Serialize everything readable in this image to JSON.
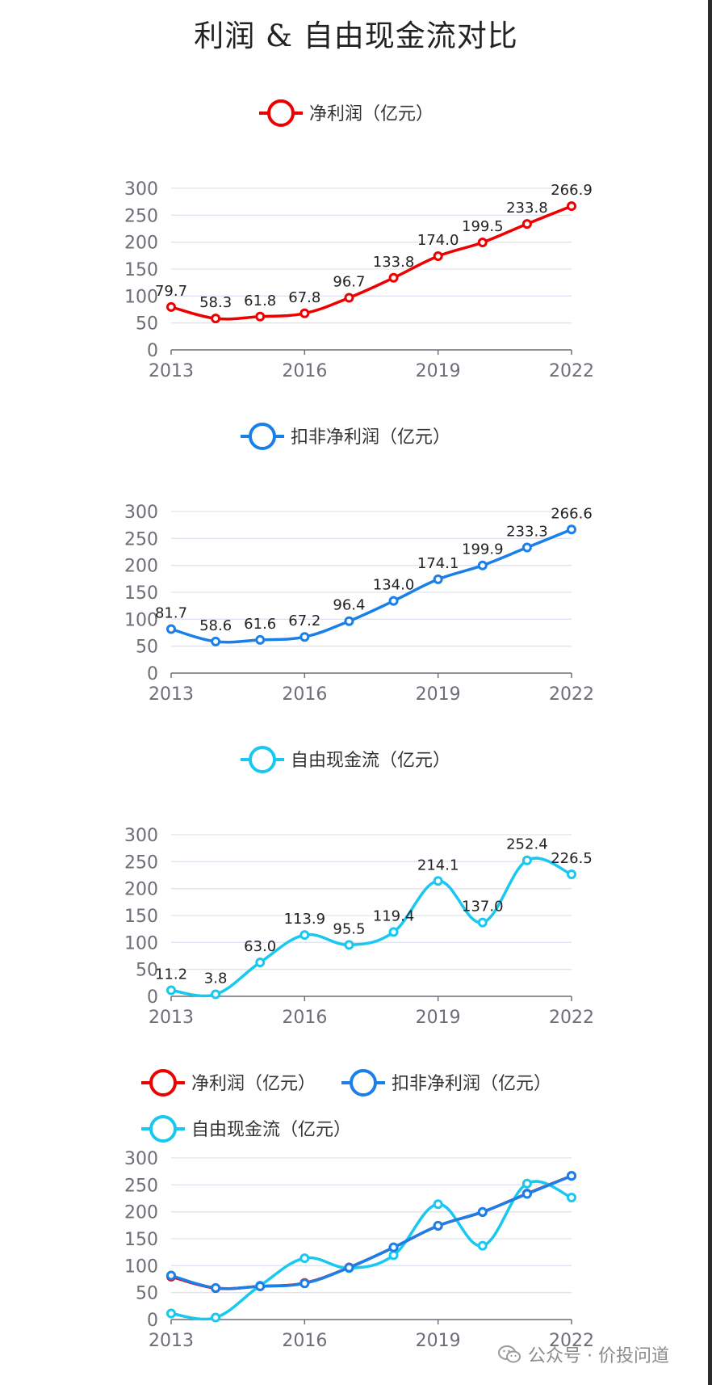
{
  "title": "利润 & 自由现金流对比",
  "watermark": "公众号 · 价投问道",
  "colors": {
    "net_profit": "#ee0000",
    "adj_profit": "#1a7fe8",
    "fcf": "#18c8f0",
    "axis_text": "#6e6e78",
    "grid": "#dfe3ef"
  },
  "chart_data": [
    {
      "type": "line",
      "legend": [
        "净利润（亿元）"
      ],
      "x": [
        "2013",
        "2014",
        "2015",
        "2016",
        "2017",
        "2018",
        "2019",
        "2020",
        "2021",
        "2022"
      ],
      "xticks": [
        "2013",
        "2016",
        "2019",
        "2022"
      ],
      "yticks": [
        0,
        50,
        100,
        150,
        200,
        250,
        300
      ],
      "ylim": [
        0,
        300
      ],
      "series": [
        {
          "name": "净利润（亿元）",
          "color": "#ee0000",
          "labels": true,
          "values": [
            79.7,
            58.3,
            61.8,
            67.8,
            96.7,
            133.8,
            174.0,
            199.5,
            233.8,
            266.9
          ],
          "value_labels": [
            "79.7",
            "58.3",
            "61.8",
            "67.8",
            "96.7",
            "133.8",
            "174.0",
            "199.5",
            "233.8",
            "266.9"
          ]
        }
      ]
    },
    {
      "type": "line",
      "legend": [
        "扣非净利润（亿元）"
      ],
      "x": [
        "2013",
        "2014",
        "2015",
        "2016",
        "2017",
        "2018",
        "2019",
        "2020",
        "2021",
        "2022"
      ],
      "xticks": [
        "2013",
        "2016",
        "2019",
        "2022"
      ],
      "yticks": [
        0,
        50,
        100,
        150,
        200,
        250,
        300
      ],
      "ylim": [
        0,
        300
      ],
      "series": [
        {
          "name": "扣非净利润（亿元）",
          "color": "#1a7fe8",
          "labels": true,
          "values": [
            81.7,
            58.6,
            61.6,
            67.2,
            96.4,
            134.0,
            174.1,
            199.9,
            233.3,
            266.6
          ],
          "value_labels": [
            "81.7",
            "58.6",
            "61.6",
            "67.2",
            "96.4",
            "134.0",
            "174.1",
            "199.9",
            "233.3",
            "266.6"
          ]
        }
      ]
    },
    {
      "type": "line",
      "legend": [
        "自由现金流（亿元）"
      ],
      "x": [
        "2013",
        "2014",
        "2015",
        "2016",
        "2017",
        "2018",
        "2019",
        "2020",
        "2021",
        "2022"
      ],
      "xticks": [
        "2013",
        "2016",
        "2019",
        "2022"
      ],
      "yticks": [
        0,
        50,
        100,
        150,
        200,
        250,
        300
      ],
      "ylim": [
        0,
        300
      ],
      "series": [
        {
          "name": "自由现金流（亿元）",
          "color": "#18c8f0",
          "labels": true,
          "values": [
            11.2,
            3.8,
            63.0,
            113.9,
            95.5,
            119.4,
            214.1,
            137.0,
            252.4,
            226.5
          ],
          "value_labels": [
            "11.2",
            "3.8",
            "63.0",
            "113.9",
            "95.5",
            "119.4",
            "214.1",
            "137.0",
            "252.4",
            "226.5"
          ]
        }
      ]
    },
    {
      "type": "line",
      "legend": [
        "净利润（亿元）",
        "扣非净利润（亿元）",
        "自由现金流（亿元）"
      ],
      "x": [
        "2013",
        "2014",
        "2015",
        "2016",
        "2017",
        "2018",
        "2019",
        "2020",
        "2021",
        "2022"
      ],
      "xticks": [
        "2013",
        "2016",
        "2019",
        "2022"
      ],
      "yticks": [
        0,
        50,
        100,
        150,
        200,
        250,
        300
      ],
      "ylim": [
        0,
        300
      ],
      "series": [
        {
          "name": "净利润（亿元）",
          "color": "#ee0000",
          "labels": false,
          "values": [
            79.7,
            58.3,
            61.8,
            67.8,
            96.7,
            133.8,
            174.0,
            199.5,
            233.8,
            266.9
          ]
        },
        {
          "name": "自由现金流（亿元）",
          "color": "#18c8f0",
          "labels": false,
          "values": [
            11.2,
            3.8,
            63.0,
            113.9,
            95.5,
            119.4,
            214.1,
            137.0,
            252.4,
            226.5
          ]
        },
        {
          "name": "扣非净利润（亿元）",
          "color": "#1a7fe8",
          "labels": false,
          "values": [
            81.7,
            58.6,
            61.6,
            67.2,
            96.4,
            134.0,
            174.1,
            199.9,
            233.3,
            266.6
          ]
        }
      ]
    }
  ]
}
